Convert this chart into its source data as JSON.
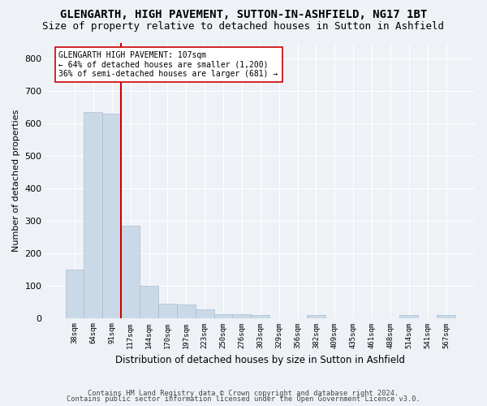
{
  "title": "GLENGARTH, HIGH PAVEMENT, SUTTON-IN-ASHFIELD, NG17 1BT",
  "subtitle": "Size of property relative to detached houses in Sutton in Ashfield",
  "xlabel": "Distribution of detached houses by size in Sutton in Ashfield",
  "ylabel": "Number of detached properties",
  "footnote1": "Contains HM Land Registry data © Crown copyright and database right 2024.",
  "footnote2": "Contains public sector information licensed under the Open Government Licence v3.0.",
  "bar_values": [
    150,
    635,
    630,
    285,
    100,
    43,
    42,
    27,
    11,
    11,
    8,
    0,
    0,
    8,
    0,
    0,
    0,
    0,
    8,
    0,
    8
  ],
  "bar_labels": [
    "38sqm",
    "64sqm",
    "91sqm",
    "117sqm",
    "144sqm",
    "170sqm",
    "197sqm",
    "223sqm",
    "250sqm",
    "276sqm",
    "303sqm",
    "329sqm",
    "356sqm",
    "382sqm",
    "409sqm",
    "435sqm",
    "461sqm",
    "488sqm",
    "514sqm",
    "541sqm",
    "567sqm"
  ],
  "bar_color": "#c9d9e8",
  "bar_edge_color": "#aabcce",
  "vline_x": 2.5,
  "vline_color": "#cc0000",
  "annotation_line1": "GLENGARTH HIGH PAVEMENT: 107sqm",
  "annotation_line2": "← 64% of detached houses are smaller (1,200)",
  "annotation_line3": "36% of semi-detached houses are larger (681) →",
  "annotation_box_color": "#ffffff",
  "annotation_box_edge": "#cc0000",
  "ylim": [
    0,
    850
  ],
  "yticks": [
    0,
    100,
    200,
    300,
    400,
    500,
    600,
    700,
    800
  ],
  "background_color": "#eef2f7",
  "grid_color": "#ffffff",
  "title_fontsize": 10,
  "subtitle_fontsize": 9
}
